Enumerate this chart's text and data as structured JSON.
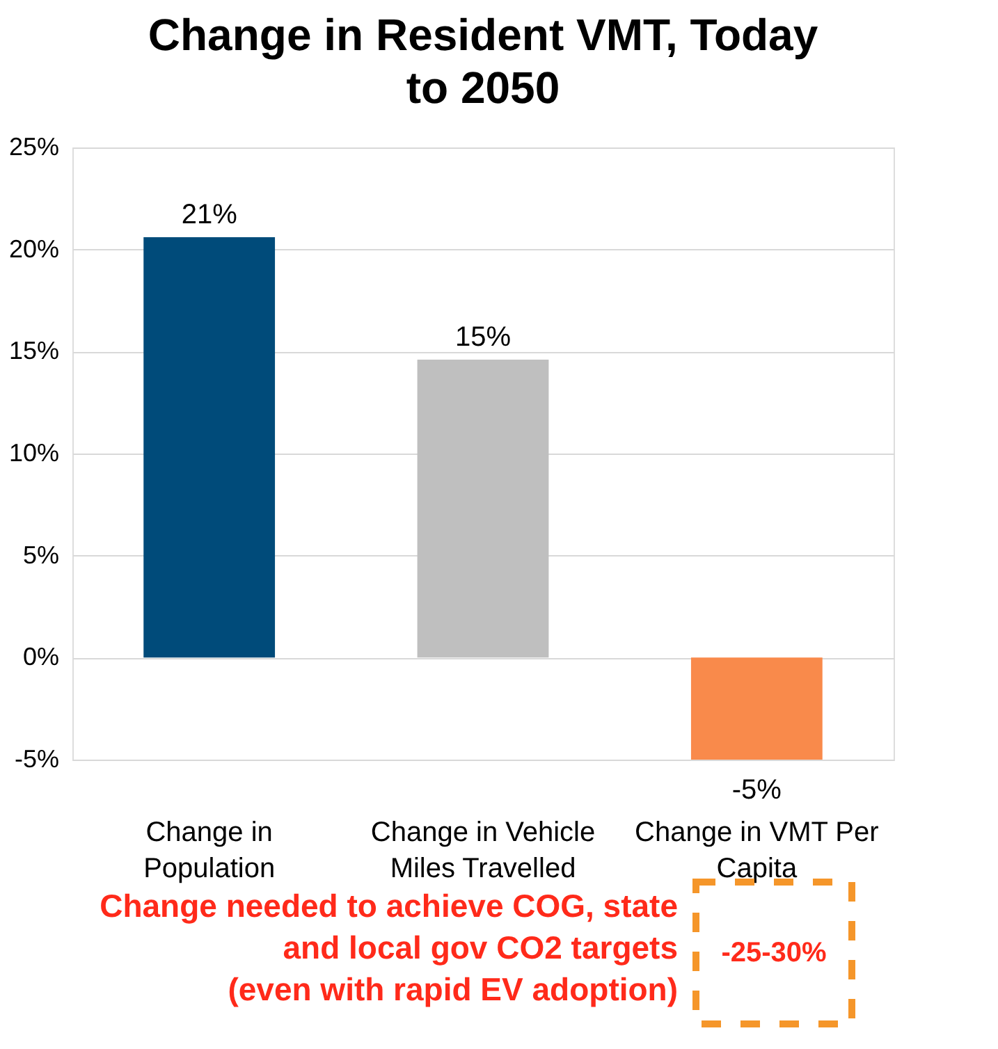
{
  "chart_data": {
    "type": "bar",
    "title": "Change in Resident VMT, Today to 2050",
    "categories": [
      "Change in Population",
      "Change in Vehicle Miles Travelled",
      "Change in VMT Per Capita"
    ],
    "values": [
      20.6,
      14.6,
      -5
    ],
    "colors": [
      "#004b7a",
      "#bfbfbf",
      "#f98a4b"
    ],
    "value_labels": [
      "21%",
      "15%",
      "-5%"
    ],
    "ylim": [
      -5,
      25
    ],
    "yticks": [
      {
        "value": -5,
        "label": "-5%"
      },
      {
        "value": 0,
        "label": "0%"
      },
      {
        "value": 5,
        "label": "5%"
      },
      {
        "value": 10,
        "label": "10%"
      },
      {
        "value": 15,
        "label": "15%"
      },
      {
        "value": 20,
        "label": "20%"
      },
      {
        "value": 25,
        "label": "25%"
      }
    ],
    "grid": "y",
    "legend": false,
    "annotations": [
      "Change needed to achieve COG, state and local gov CO2 targets (even with rapid EV adoption)",
      "-25-30%"
    ]
  }
}
